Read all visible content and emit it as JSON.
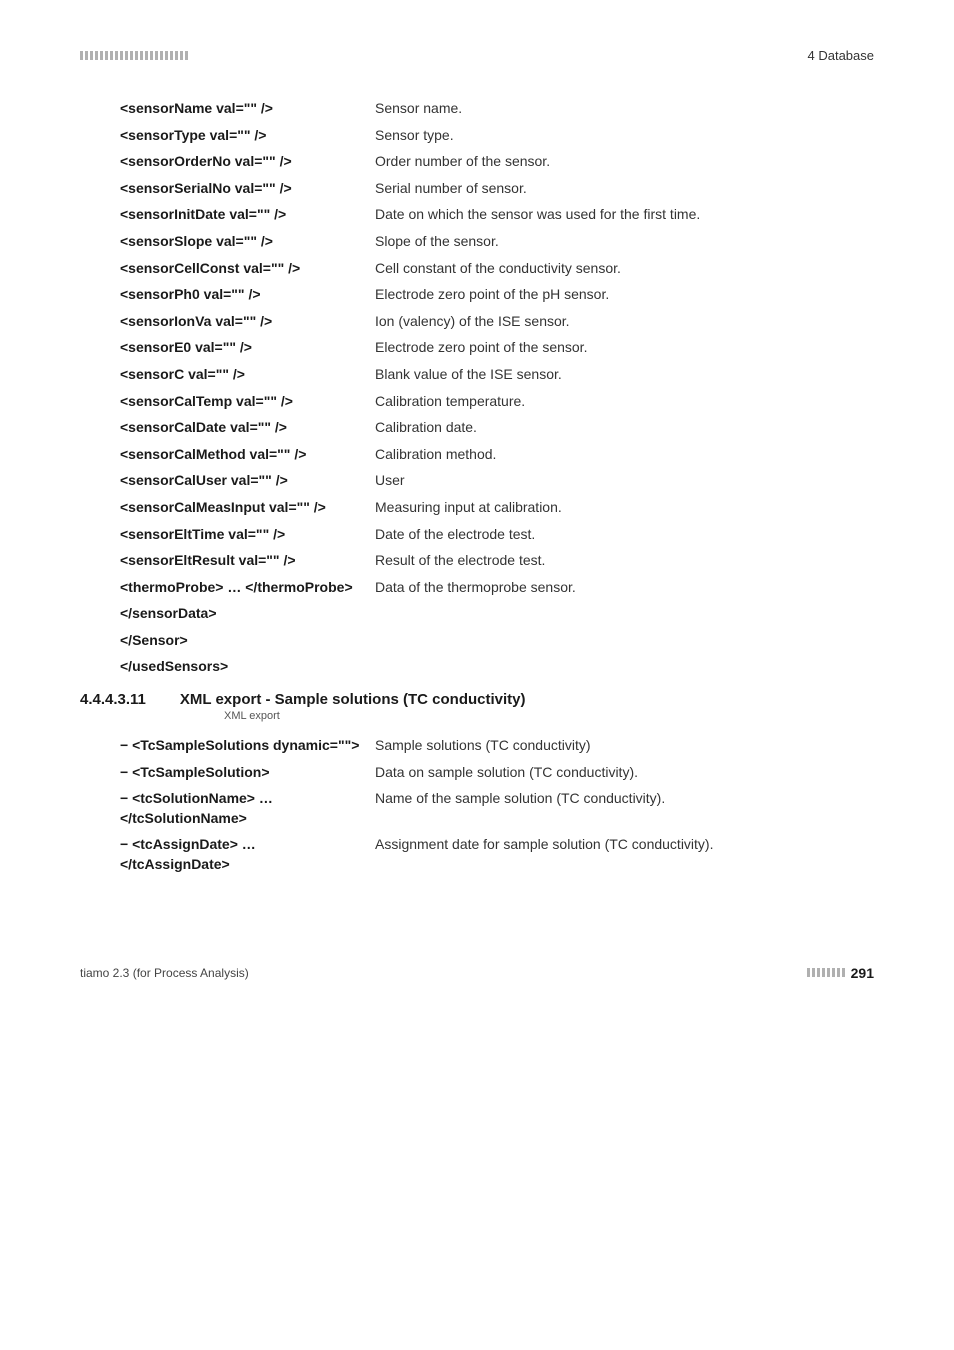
{
  "header": {
    "right": "4 Database"
  },
  "rows1": [
    {
      "key": "<sensorName val=\"\" />",
      "val": "Sensor name."
    },
    {
      "key": "<sensorType val=\"\" />",
      "val": "Sensor type."
    },
    {
      "key": "<sensorOrderNo val=\"\" />",
      "val": "Order number of the sensor."
    },
    {
      "key": "<sensorSerialNo val=\"\" />",
      "val": "Serial number of sensor."
    },
    {
      "key": "<sensorInitDate val=\"\" />",
      "val": "Date on which the sensor was used for the first time."
    },
    {
      "key": "<sensorSlope val=\"\" />",
      "val": "Slope of the sensor."
    },
    {
      "key": "<sensorCellConst val=\"\" />",
      "val": "Cell constant of the conductivity sensor."
    },
    {
      "key": "<sensorPh0 val=\"\" />",
      "val": "Electrode zero point of the pH sensor."
    },
    {
      "key": "<sensorIonVa val=\"\" />",
      "val": "Ion (valency) of the ISE sensor."
    },
    {
      "key": "<sensorE0 val=\"\" />",
      "val": "Electrode zero point of the sensor."
    },
    {
      "key": "<sensorC val=\"\" />",
      "val": "Blank value of the ISE sensor."
    },
    {
      "key": "<sensorCalTemp val=\"\" />",
      "val": "Calibration temperature."
    },
    {
      "key": "<sensorCalDate val=\"\" />",
      "val": "Calibration date."
    },
    {
      "key": "<sensorCalMethod val=\"\" />",
      "val": "Calibration method."
    },
    {
      "key": "<sensorCalUser val=\"\" />",
      "val": "User"
    },
    {
      "key": "<sensorCalMeasInput val=\"\" />",
      "val": "Measuring input at calibration."
    },
    {
      "key": "<sensorEltTime val=\"\" />",
      "val": "Date of the electrode test."
    },
    {
      "key": "<sensorEltResult val=\"\" />",
      "val": "Result of the electrode test."
    },
    {
      "key": "<thermoProbe> … </thermoProbe>",
      "val": "Data of the thermoprobe sensor."
    },
    {
      "key": "</sensorData>",
      "val": ""
    },
    {
      "key": "</Sensor>",
      "val": ""
    },
    {
      "key": "</usedSensors>",
      "val": ""
    }
  ],
  "section": {
    "num": "4.4.4.3.11",
    "title": "XML export - Sample solutions (TC conductivity)",
    "sub": "XML export"
  },
  "rows2": [
    {
      "key": "− <TcSampleSolutions dynamic=\"\">",
      "val": "Sample solutions (TC conductivity)"
    },
    {
      "key": "− <TcSampleSolution>",
      "val": "Data on sample solution (TC conductivity)."
    },
    {
      "key": "− <tcSolutionName> … </tcSolutionName>",
      "val": "Name of the sample solution (TC conductivity)."
    },
    {
      "key": "− <tcAssignDate> … </tcAssignDate>",
      "val": "Assignment date for sample solution (TC conductivity)."
    }
  ],
  "footer": {
    "left": "tiamo 2.3 (for Process Analysis)",
    "page": "291"
  },
  "style": {
    "tick_count_header": 22,
    "tick_count_footer": 8
  }
}
